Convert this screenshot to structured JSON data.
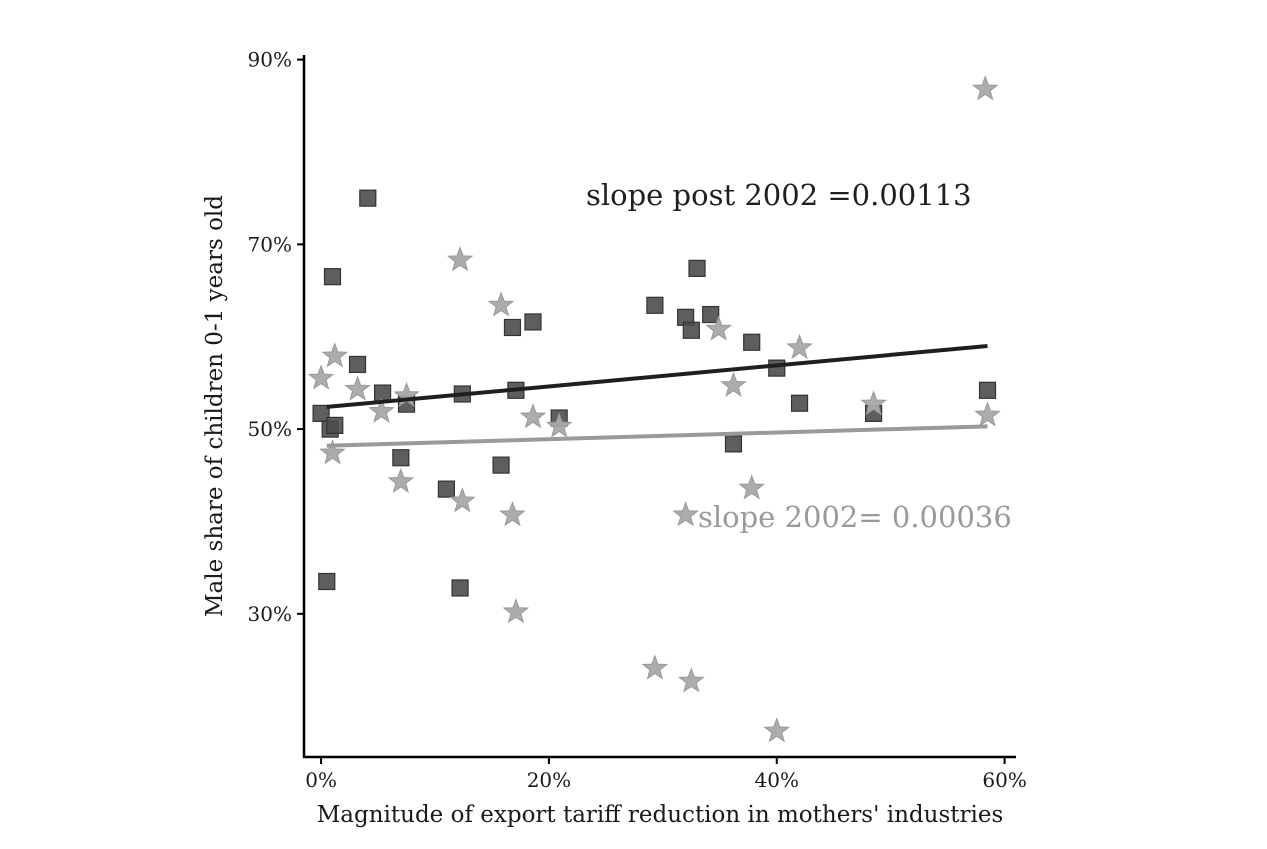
{
  "chart_data": {
    "type": "scatter",
    "title": "",
    "xlabel": "Magnitude of export tariff reduction in mothers' industries",
    "ylabel": "Male share of children 0-1 years old",
    "xlim": [
      -0.015,
      0.61
    ],
    "ylim": [
      0.145,
      0.905
    ],
    "x_ticks": [
      {
        "value": 0.0,
        "label": "0%"
      },
      {
        "value": 0.2,
        "label": "20%"
      },
      {
        "value": 0.4,
        "label": "40%"
      },
      {
        "value": 0.6,
        "label": "60%"
      }
    ],
    "y_ticks": [
      {
        "value": 0.3,
        "label": "30%"
      },
      {
        "value": 0.5,
        "label": "50%"
      },
      {
        "value": 0.7,
        "label": "70%"
      },
      {
        "value": 0.9,
        "label": "90%"
      }
    ],
    "grid": false,
    "legend": "none",
    "annotations": [
      {
        "text": "slope post 2002 =0.00113",
        "color": "#1f1f1f",
        "series": "post2002"
      },
      {
        "text": "slope 2002= 0.00036",
        "color": "#9a9a9a",
        "series": "y2002"
      }
    ],
    "series": [
      {
        "id": "post2002",
        "marker": "square",
        "color": "#4d4d4d",
        "line_color": "#1f1f1f",
        "fit": {
          "x": [
            0.005,
            0.585
          ],
          "y": [
            0.524,
            0.59
          ]
        },
        "points": [
          {
            "x": 0.0,
            "y": 0.517
          },
          {
            "x": 0.005,
            "y": 0.335
          },
          {
            "x": 0.008,
            "y": 0.5
          },
          {
            "x": 0.01,
            "y": 0.665
          },
          {
            "x": 0.012,
            "y": 0.504
          },
          {
            "x": 0.032,
            "y": 0.57
          },
          {
            "x": 0.041,
            "y": 0.75
          },
          {
            "x": 0.054,
            "y": 0.539
          },
          {
            "x": 0.07,
            "y": 0.469
          },
          {
            "x": 0.075,
            "y": 0.527
          },
          {
            "x": 0.11,
            "y": 0.435
          },
          {
            "x": 0.122,
            "y": 0.328
          },
          {
            "x": 0.124,
            "y": 0.538
          },
          {
            "x": 0.158,
            "y": 0.461
          },
          {
            "x": 0.168,
            "y": 0.61
          },
          {
            "x": 0.171,
            "y": 0.542
          },
          {
            "x": 0.186,
            "y": 0.616
          },
          {
            "x": 0.209,
            "y": 0.512
          },
          {
            "x": 0.293,
            "y": 0.634
          },
          {
            "x": 0.32,
            "y": 0.621
          },
          {
            "x": 0.325,
            "y": 0.607
          },
          {
            "x": 0.33,
            "y": 0.674
          },
          {
            "x": 0.342,
            "y": 0.624
          },
          {
            "x": 0.378,
            "y": 0.594
          },
          {
            "x": 0.362,
            "y": 0.484
          },
          {
            "x": 0.4,
            "y": 0.566
          },
          {
            "x": 0.42,
            "y": 0.528
          },
          {
            "x": 0.485,
            "y": 0.517
          },
          {
            "x": 0.585,
            "y": 0.542
          }
        ]
      },
      {
        "id": "y2002",
        "marker": "star",
        "color": "#a8a8a8",
        "line_color": "#9a9a9a",
        "fit": {
          "x": [
            0.005,
            0.585
          ],
          "y": [
            0.482,
            0.503
          ]
        },
        "points": [
          {
            "x": 0.0,
            "y": 0.555
          },
          {
            "x": 0.01,
            "y": 0.474
          },
          {
            "x": 0.012,
            "y": 0.579
          },
          {
            "x": 0.032,
            "y": 0.543
          },
          {
            "x": 0.053,
            "y": 0.519
          },
          {
            "x": 0.07,
            "y": 0.443
          },
          {
            "x": 0.075,
            "y": 0.536
          },
          {
            "x": 0.122,
            "y": 0.683
          },
          {
            "x": 0.124,
            "y": 0.422
          },
          {
            "x": 0.158,
            "y": 0.634
          },
          {
            "x": 0.168,
            "y": 0.407
          },
          {
            "x": 0.171,
            "y": 0.302
          },
          {
            "x": 0.186,
            "y": 0.513
          },
          {
            "x": 0.209,
            "y": 0.503
          },
          {
            "x": 0.293,
            "y": 0.241
          },
          {
            "x": 0.32,
            "y": 0.407
          },
          {
            "x": 0.325,
            "y": 0.227
          },
          {
            "x": 0.349,
            "y": 0.608
          },
          {
            "x": 0.362,
            "y": 0.547
          },
          {
            "x": 0.378,
            "y": 0.436
          },
          {
            "x": 0.4,
            "y": 0.173
          },
          {
            "x": 0.42,
            "y": 0.588
          },
          {
            "x": 0.485,
            "y": 0.527
          },
          {
            "x": 0.583,
            "y": 0.868
          },
          {
            "x": 0.585,
            "y": 0.515
          }
        ]
      }
    ]
  }
}
